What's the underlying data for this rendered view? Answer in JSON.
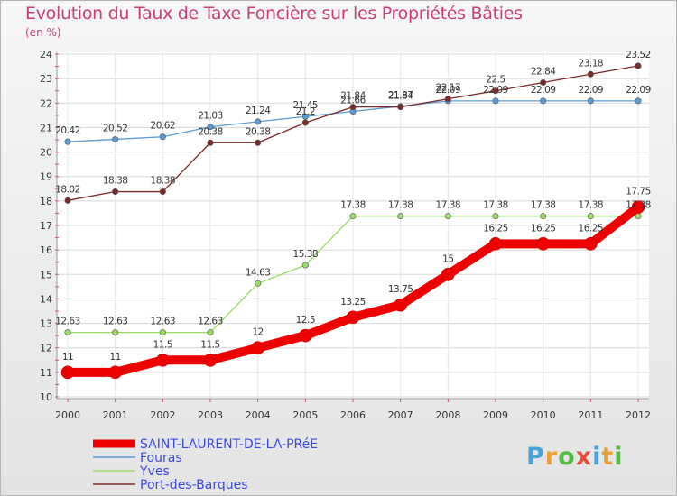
{
  "title": "Evolution du Taux de Taxe Foncière sur les Propriétés Bâties",
  "unit_label": "(en %)",
  "logo": {
    "text": "Proxiti",
    "letter_colors": [
      "#4aa3d8",
      "#e8a13a",
      "#58b947",
      "#e84c3c",
      "#4aa3d8",
      "#e8a13a",
      "#58b947"
    ]
  },
  "chart_data": {
    "type": "line",
    "title": "Evolution du Taux de Taxe Foncière sur les Propriétés Bâties",
    "ylabel": "(en %)",
    "xlabel": "",
    "x": [
      "2000",
      "2001",
      "2002",
      "2003",
      "2004",
      "2005",
      "2006",
      "2007",
      "2008",
      "2009",
      "2010",
      "2011",
      "2012"
    ],
    "ylim": [
      10,
      24
    ],
    "yticks": [
      "10",
      "11",
      "12",
      "13",
      "14",
      "15",
      "16",
      "17",
      "18",
      "19",
      "20",
      "21",
      "22",
      "23",
      "24"
    ],
    "grid": true,
    "series": [
      {
        "name": "Fouras",
        "color": "#5b9bd5",
        "values": [
          20.42,
          20.52,
          20.62,
          21.03,
          21.24,
          21.45,
          21.66,
          21.87,
          22.09,
          22.09,
          22.09,
          22.09,
          22.09
        ],
        "labels": [
          "20.42",
          "20.52",
          "20.62",
          "21.03",
          "21.24",
          "21.45",
          "21.66",
          "21.87",
          "22.09",
          "22.09",
          "22.09",
          "22.09",
          "22.09"
        ]
      },
      {
        "name": "Port-des-Barques",
        "color": "#7a2a2a",
        "values": [
          18.02,
          18.38,
          18.38,
          20.38,
          20.38,
          21.2,
          21.84,
          21.84,
          22.17,
          22.5,
          22.84,
          23.18,
          23.52
        ],
        "labels": [
          "18.02",
          "18.38",
          "18.38",
          "20.38",
          "20.38",
          "21.2",
          "21.84",
          "21.84",
          "22.17",
          "22.5",
          "22.84",
          "23.18",
          "23.52"
        ]
      },
      {
        "name": "Yves",
        "color": "#99dd66",
        "values": [
          12.63,
          12.63,
          12.63,
          12.63,
          14.63,
          15.38,
          17.38,
          17.38,
          17.38,
          17.38,
          17.38,
          17.38,
          17.38
        ],
        "labels": [
          "12.63",
          "12.63",
          "12.63",
          "12.63",
          "14.63",
          "15.38",
          "17.38",
          "17.38",
          "17.38",
          "17.38",
          "17.38",
          "17.38",
          "17.38"
        ]
      },
      {
        "name": "SAINT-LAURENT-DE-LA-PRéE",
        "color": "#ee0000",
        "values": [
          11,
          11,
          11.5,
          11.5,
          12,
          12.5,
          13.25,
          13.75,
          15,
          16.25,
          16.25,
          16.25,
          17.75
        ],
        "labels": [
          "11",
          "11",
          "11.5",
          "11.5",
          "12",
          "12.5",
          "13.25",
          "13.75",
          "15",
          "16.25",
          "16.25",
          "16.25",
          "17.75"
        ]
      }
    ],
    "legend": [
      "SAINT-LAURENT-DE-LA-PRéE",
      "Fouras",
      "Yves",
      "Port-des-Barques"
    ]
  }
}
